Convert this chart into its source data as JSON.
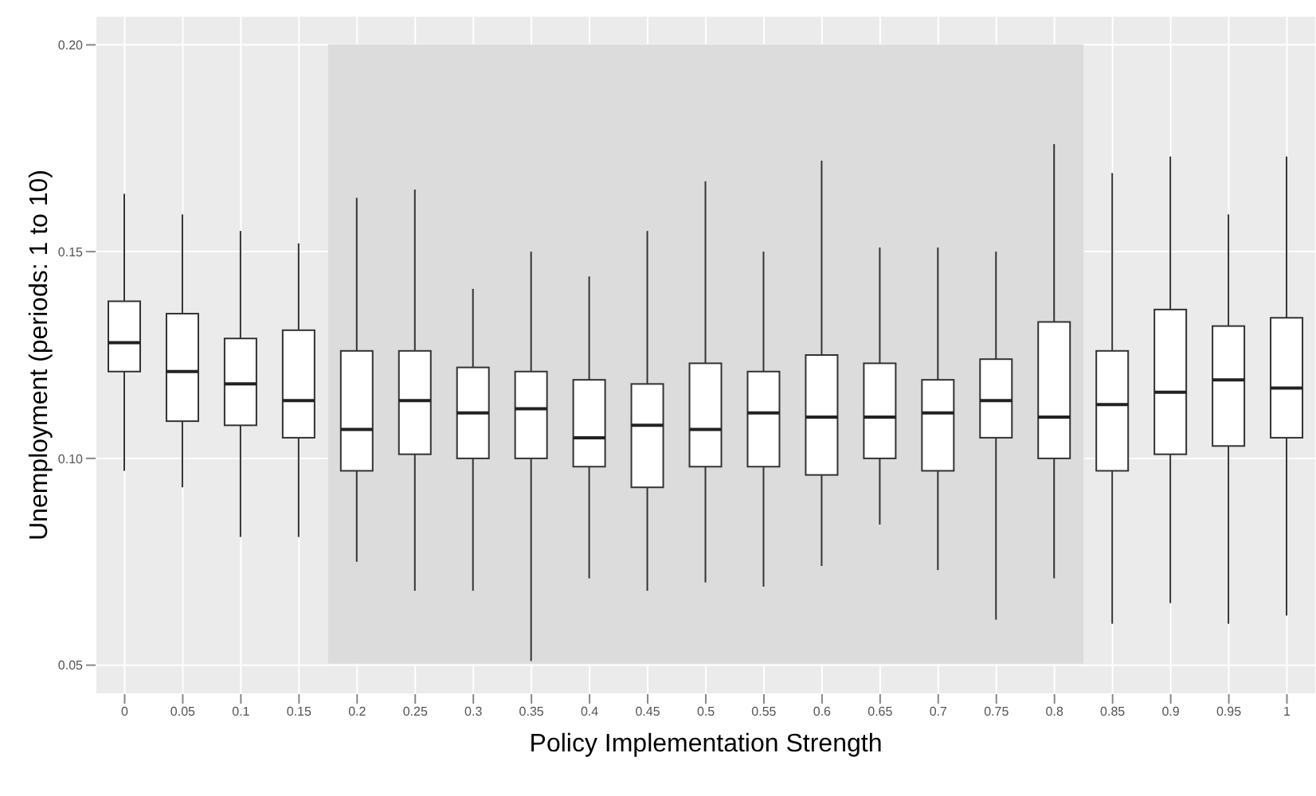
{
  "chart_data": {
    "type": "box",
    "xlabel": "Policy Implementation Strength",
    "ylabel": "Unemployment (periods: 1 to 10)",
    "categories": [
      "0",
      "0.05",
      "0.1",
      "0.15",
      "0.2",
      "0.25",
      "0.3",
      "0.35",
      "0.4",
      "0.45",
      "0.5",
      "0.55",
      "0.6",
      "0.65",
      "0.7",
      "0.75",
      "0.8",
      "0.85",
      "0.9",
      "0.95",
      "1"
    ],
    "boxes": [
      {
        "low": 0.097,
        "q1": 0.121,
        "median": 0.128,
        "q3": 0.138,
        "high": 0.164
      },
      {
        "low": 0.093,
        "q1": 0.109,
        "median": 0.121,
        "q3": 0.135,
        "high": 0.159
      },
      {
        "low": 0.081,
        "q1": 0.108,
        "median": 0.118,
        "q3": 0.129,
        "high": 0.155
      },
      {
        "low": 0.081,
        "q1": 0.105,
        "median": 0.114,
        "q3": 0.131,
        "high": 0.152
      },
      {
        "low": 0.075,
        "q1": 0.097,
        "median": 0.107,
        "q3": 0.126,
        "high": 0.163
      },
      {
        "low": 0.068,
        "q1": 0.101,
        "median": 0.114,
        "q3": 0.126,
        "high": 0.165
      },
      {
        "low": 0.068,
        "q1": 0.1,
        "median": 0.111,
        "q3": 0.122,
        "high": 0.141
      },
      {
        "low": 0.051,
        "q1": 0.1,
        "median": 0.112,
        "q3": 0.121,
        "high": 0.15
      },
      {
        "low": 0.071,
        "q1": 0.098,
        "median": 0.105,
        "q3": 0.119,
        "high": 0.144
      },
      {
        "low": 0.068,
        "q1": 0.093,
        "median": 0.108,
        "q3": 0.118,
        "high": 0.155
      },
      {
        "low": 0.07,
        "q1": 0.098,
        "median": 0.107,
        "q3": 0.123,
        "high": 0.167
      },
      {
        "low": 0.069,
        "q1": 0.098,
        "median": 0.111,
        "q3": 0.121,
        "high": 0.15
      },
      {
        "low": 0.074,
        "q1": 0.096,
        "median": 0.11,
        "q3": 0.125,
        "high": 0.172
      },
      {
        "low": 0.084,
        "q1": 0.1,
        "median": 0.11,
        "q3": 0.123,
        "high": 0.151
      },
      {
        "low": 0.073,
        "q1": 0.097,
        "median": 0.111,
        "q3": 0.119,
        "high": 0.151
      },
      {
        "low": 0.061,
        "q1": 0.105,
        "median": 0.114,
        "q3": 0.124,
        "high": 0.15
      },
      {
        "low": 0.071,
        "q1": 0.1,
        "median": 0.11,
        "q3": 0.133,
        "high": 0.176
      },
      {
        "low": 0.06,
        "q1": 0.097,
        "median": 0.113,
        "q3": 0.126,
        "high": 0.169
      },
      {
        "low": 0.065,
        "q1": 0.101,
        "median": 0.116,
        "q3": 0.136,
        "high": 0.173
      },
      {
        "low": 0.06,
        "q1": 0.103,
        "median": 0.119,
        "q3": 0.132,
        "high": 0.159
      },
      {
        "low": 0.062,
        "q1": 0.105,
        "median": 0.117,
        "q3": 0.134,
        "high": 0.173
      }
    ],
    "ylim": [
      0.043,
      0.207
    ],
    "yticks": [
      0.05,
      {
        "value": 0.1,
        "label": "0.10"
      },
      0.15,
      {
        "value": 0.2,
        "label": "0.20"
      }
    ],
    "bands": [
      {
        "axis": "x",
        "from": "0.2",
        "to": "0.8",
        "color": "#dcdcdc"
      }
    ],
    "grid": true
  }
}
